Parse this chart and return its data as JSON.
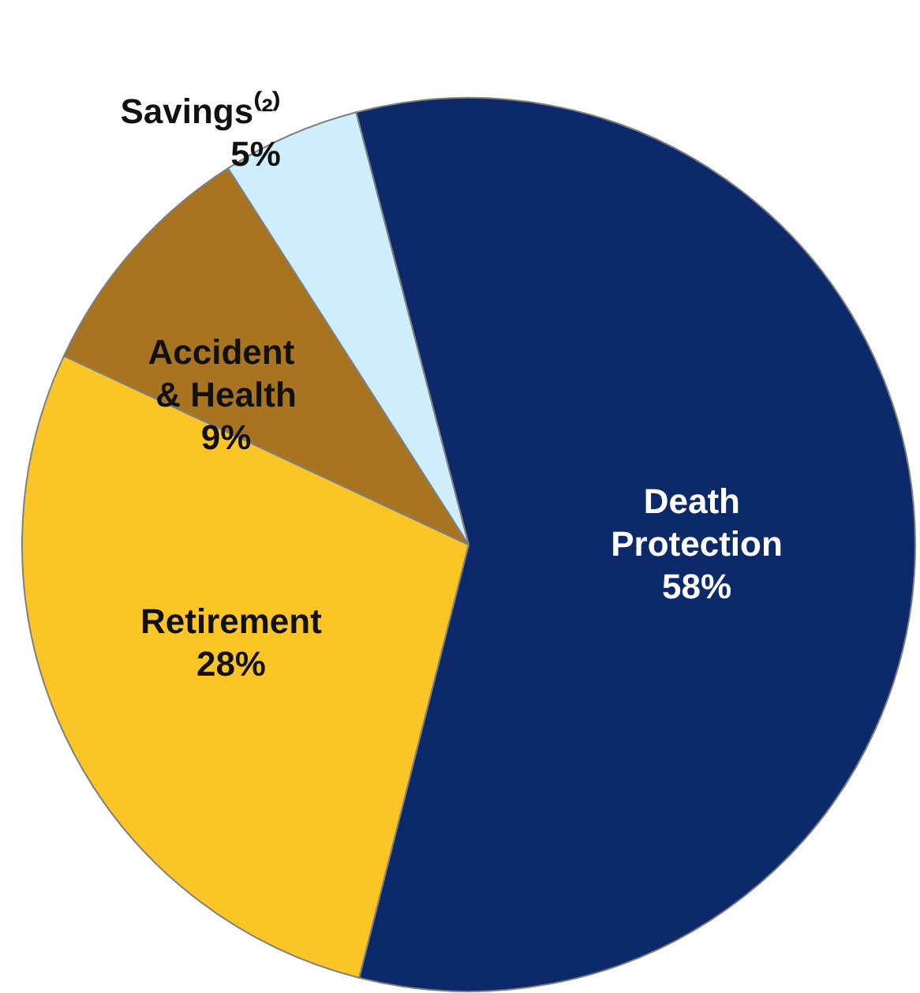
{
  "chart_data": {
    "type": "pie",
    "categories": [
      "Death Protection",
      "Retirement",
      "Accident & Health",
      "Savings⁽²⁾"
    ],
    "values": [
      58,
      28,
      9,
      5
    ],
    "value_labels": [
      "58%",
      "28%",
      "9%",
      "5%"
    ],
    "colors": [
      "#0c2a6a",
      "#fbc526",
      "#a9741f",
      "#cdeefa"
    ]
  }
}
